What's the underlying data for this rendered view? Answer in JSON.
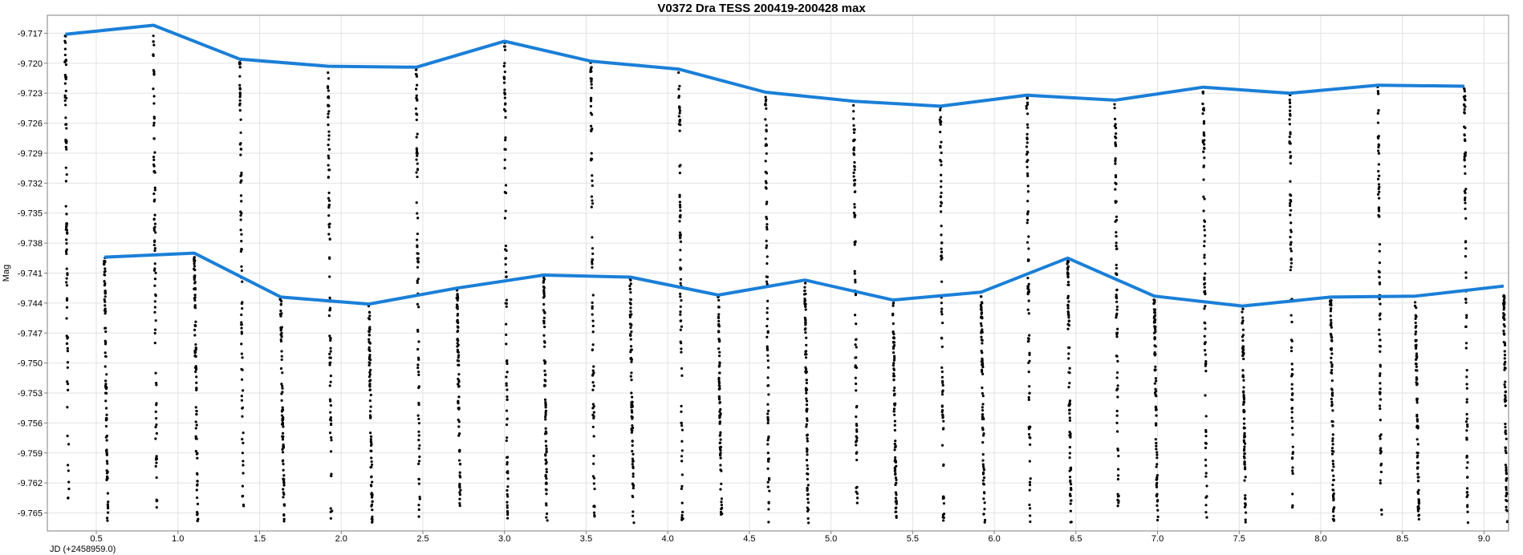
{
  "chart_data": {
    "type": "scatter",
    "title": "V0372 Dra TESS 200419-200428 max",
    "xlabel": "JD (+2458959.0)",
    "ylabel": "Mag",
    "xlim": [
      0.2,
      9.15
    ],
    "ylim": [
      -9.7152,
      -9.7668
    ],
    "y_inverted": true,
    "grid": true,
    "x_ticks": [
      "0.5",
      "1.0",
      "1.5",
      "2.0",
      "2.5",
      "3.0",
      "3.5",
      "4.0",
      "4.5",
      "5.0",
      "5.5",
      "6.0",
      "6.5",
      "7.0",
      "7.5",
      "8.0",
      "8.5",
      "9.0"
    ],
    "y_ticks": [
      "-9.717",
      "-9.720",
      "-9.723",
      "-9.726",
      "-9.729",
      "-9.732",
      "-9.735",
      "-9.738",
      "-9.741",
      "-9.744",
      "-9.747",
      "-9.750",
      "-9.753",
      "-9.756",
      "-9.759",
      "-9.762",
      "-9.765"
    ],
    "series": [
      {
        "name": "",
        "kind": "line",
        "color": "#1a7fd8",
        "x": [
          0.31,
          0.85,
          1.38,
          1.92,
          2.46,
          3.0,
          3.53,
          4.07,
          4.6,
          5.14,
          5.67,
          6.2,
          6.74,
          7.28,
          7.81,
          8.35,
          8.88
        ],
        "y": [
          -9.7171,
          -9.7162,
          -9.7196,
          -9.7203,
          -9.7204,
          -9.7178,
          -9.7198,
          -9.7206,
          -9.7229,
          -9.7238,
          -9.7243,
          -9.7232,
          -9.7237,
          -9.7224,
          -9.723,
          -9.7222,
          -9.7223
        ]
      },
      {
        "name": "",
        "kind": "line",
        "color": "#1a7fd8",
        "x": [
          0.55,
          1.1,
          1.63,
          2.17,
          2.71,
          3.24,
          3.77,
          4.31,
          4.84,
          5.38,
          5.92,
          6.45,
          6.98,
          7.52,
          8.06,
          8.58,
          9.12
        ],
        "y": [
          -9.7394,
          -9.739,
          -9.7434,
          -9.7441,
          -9.7425,
          -9.7412,
          -9.7414,
          -9.7432,
          -9.7417,
          -9.7437,
          -9.7429,
          -9.7395,
          -9.7433,
          -9.7443,
          -9.7434,
          -9.7433,
          -9.7423
        ]
      },
      {
        "name": "",
        "kind": "points",
        "color": "#000000",
        "cycle_starts": [
          0.3,
          0.85,
          1.38,
          1.92,
          2.46,
          3.0,
          3.53,
          4.07,
          4.6,
          5.14,
          5.67,
          6.2,
          6.74,
          7.28,
          7.81,
          8.35,
          8.88
        ],
        "period": 0.536,
        "max_mag": -9.717,
        "min_mag": -9.766
      }
    ]
  }
}
